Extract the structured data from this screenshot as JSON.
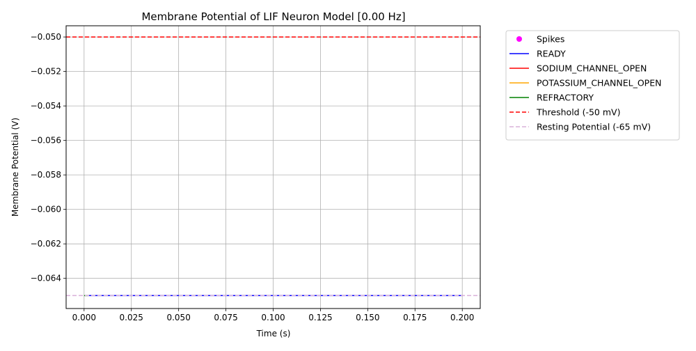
{
  "chart_data": {
    "type": "line",
    "title": "Membrane Potential of LIF Neuron Model [0.00 Hz]",
    "xlabel": "Time (s)",
    "ylabel": "Membrane Potential (V)",
    "xlim": [
      -0.0095,
      0.2095
    ],
    "ylim": [
      -0.06575,
      -0.04935
    ],
    "x_ticks": [
      0.0,
      0.025,
      0.05,
      0.075,
      0.1,
      0.125,
      0.15,
      0.175,
      0.2
    ],
    "x_tick_labels": [
      "0.000",
      "0.025",
      "0.050",
      "0.075",
      "0.100",
      "0.125",
      "0.150",
      "0.175",
      "0.200"
    ],
    "y_ticks": [
      -0.064,
      -0.062,
      -0.06,
      -0.058,
      -0.056,
      -0.054,
      -0.052,
      -0.05
    ],
    "y_tick_labels": [
      "−0.064",
      "−0.062",
      "−0.060",
      "−0.058",
      "−0.056",
      "−0.054",
      "−0.052",
      "−0.050"
    ],
    "grid": true,
    "legend_position": "outside-top-right",
    "series": [
      {
        "name": "Spikes",
        "kind": "scatter",
        "color": "#ff00ff",
        "x": [],
        "y": []
      },
      {
        "name": "READY",
        "kind": "line",
        "color": "#0000ff",
        "x": [
          0.002,
          0.2
        ],
        "y": [
          -0.065,
          -0.065
        ]
      },
      {
        "name": "SODIUM_CHANNEL_OPEN",
        "kind": "line",
        "color": "#ff0000",
        "x": [],
        "y": []
      },
      {
        "name": "POTASSIUM_CHANNEL_OPEN",
        "kind": "line",
        "color": "#ffa500",
        "x": [],
        "y": []
      },
      {
        "name": "REFRACTORY",
        "kind": "line",
        "color": "#008000",
        "x": [
          0.0,
          0.002
        ],
        "y": [
          -0.065,
          -0.065
        ]
      },
      {
        "name": "Threshold (-50 mV)",
        "kind": "hline",
        "style": "dashed",
        "color": "#ff0000",
        "y": -0.05
      },
      {
        "name": "Resting Potential (-65 mV)",
        "kind": "hline",
        "style": "dashed",
        "color": "#d8b0d8",
        "y": -0.065
      }
    ]
  }
}
